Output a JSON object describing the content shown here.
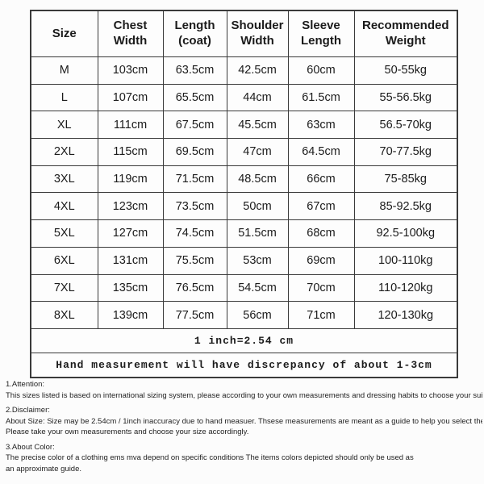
{
  "table": {
    "columns": [
      "Size",
      "Chest\nWidth",
      "Length\n(coat)",
      "Shoulder\nWidth",
      "Sleeve\nLength",
      "Recommended\nWeight"
    ],
    "rows": [
      [
        "M",
        "103cm",
        "63.5cm",
        "42.5cm",
        "60cm",
        "50-55kg"
      ],
      [
        "L",
        "107cm",
        "65.5cm",
        "44cm",
        "61.5cm",
        "55-56.5kg"
      ],
      [
        "XL",
        "111cm",
        "67.5cm",
        "45.5cm",
        "63cm",
        "56.5-70kg"
      ],
      [
        "2XL",
        "115cm",
        "69.5cm",
        "47cm",
        "64.5cm",
        "70-77.5kg"
      ],
      [
        "3XL",
        "119cm",
        "71.5cm",
        "48.5cm",
        "66cm",
        "75-85kg"
      ],
      [
        "4XL",
        "123cm",
        "73.5cm",
        "50cm",
        "67cm",
        "85-92.5kg"
      ],
      [
        "5XL",
        "127cm",
        "74.5cm",
        "51.5cm",
        "68cm",
        "92.5-100kg"
      ],
      [
        "6XL",
        "131cm",
        "75.5cm",
        "53cm",
        "69cm",
        "100-110kg"
      ],
      [
        "7XL",
        "135cm",
        "76.5cm",
        "54.5cm",
        "70cm",
        "110-120kg"
      ],
      [
        "8XL",
        "139cm",
        "77.5cm",
        "56cm",
        "71cm",
        "120-130kg"
      ]
    ],
    "footer_rows": [
      "1 inch=2.54 cm",
      "Hand measurement will have discrepancy of about 1-3cm"
    ]
  },
  "notes": [
    {
      "title": "1.Attention:",
      "lines": [
        "This sizes listed is based on international sizing system, please according to your own measurements and dressing habits to choose your suitable size."
      ]
    },
    {
      "title": "2.Disclaimer:",
      "lines": [
        "About Size: Size may be 2.54cm / 1inch inaccuracy due to hand measuer. Thsese measurements are meant as a guide to help you select the correct size.",
        "Please take your own measurements and choose your size accordingly."
      ]
    },
    {
      "title": "3.About Color:",
      "lines": [
        "The precise color of a clothing ems mva depend on specific conditions The items colors depicted should only be used as",
        "an approximate guide."
      ]
    }
  ],
  "colors": {
    "border": "#3a3a3a",
    "text": "#1b1b1b",
    "background": "#fcfcfc"
  }
}
